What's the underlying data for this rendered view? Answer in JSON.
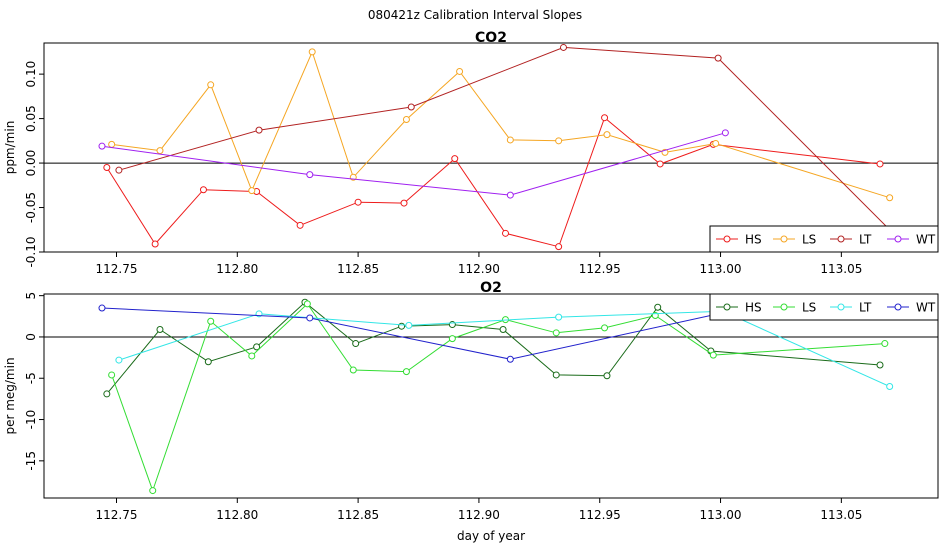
{
  "title": "080421z   Calibration Interval Slopes",
  "chart_data": [
    {
      "type": "line",
      "title": "CO2",
      "xlabel": "",
      "ylabel": "ppm/min",
      "xlim": [
        112.72,
        113.09
      ],
      "ylim": [
        -0.1,
        0.135
      ],
      "xticks": [
        "112.75",
        "112.80",
        "112.85",
        "112.90",
        "112.95",
        "113.00",
        "113.05"
      ],
      "xtick_values": [
        112.75,
        112.8,
        112.85,
        112.9,
        112.95,
        113.0,
        113.05
      ],
      "yticks": [
        "-0.10",
        "-0.05",
        "0.00",
        "0.05",
        "0.10"
      ],
      "ytick_values": [
        -0.1,
        -0.05,
        0.0,
        0.05,
        0.1
      ],
      "reference_line": 0,
      "legend_position": "bottom-right",
      "series": [
        {
          "name": "HS",
          "color": "#ee1c1c",
          "x": [
            112.746,
            112.766,
            112.786,
            112.808,
            112.826,
            112.85,
            112.869,
            112.89,
            112.911,
            112.933,
            112.952,
            112.975,
            112.997,
            113.066
          ],
          "y": [
            -0.005,
            -0.091,
            -0.03,
            -0.032,
            -0.07,
            -0.044,
            -0.045,
            0.005,
            -0.079,
            -0.094,
            0.051,
            -0.001,
            0.021,
            -0.001
          ]
        },
        {
          "name": "LS",
          "color": "#f5a623",
          "x": [
            112.748,
            112.768,
            112.789,
            112.806,
            112.831,
            112.848,
            112.87,
            112.892,
            112.913,
            112.933,
            112.953,
            112.977,
            112.998,
            113.07
          ],
          "y": [
            0.021,
            0.014,
            0.088,
            -0.031,
            0.125,
            -0.016,
            0.049,
            0.103,
            0.026,
            0.025,
            0.032,
            0.012,
            0.022,
            -0.039
          ]
        },
        {
          "name": "LT",
          "color": "#b22222",
          "x": [
            112.751,
            112.809,
            112.872,
            112.935,
            112.999,
            113.07
          ],
          "y": [
            -0.008,
            0.037,
            0.063,
            0.13,
            0.118,
            -0.075
          ]
        },
        {
          "name": "WT",
          "color": "#a020f0",
          "x": [
            112.744,
            112.83,
            112.913,
            113.002
          ],
          "y": [
            0.019,
            -0.013,
            -0.036,
            0.034
          ]
        }
      ]
    },
    {
      "type": "line",
      "title": "O2",
      "xlabel": "day of year",
      "ylabel": "per meg/min",
      "xlim": [
        112.72,
        113.09
      ],
      "ylim": [
        -19.5,
        5.2
      ],
      "xticks": [
        "112.75",
        "112.80",
        "112.85",
        "112.90",
        "112.95",
        "113.00",
        "113.05"
      ],
      "xtick_values": [
        112.75,
        112.8,
        112.85,
        112.9,
        112.95,
        113.0,
        113.05
      ],
      "yticks": [
        "-15",
        "-10",
        "-5",
        "0",
        "5"
      ],
      "ytick_values": [
        -15,
        -10,
        -5,
        0,
        5
      ],
      "reference_line": 0,
      "legend_position": "top-right",
      "series": [
        {
          "name": "HS",
          "color": "#1a6b1a",
          "x": [
            112.746,
            112.768,
            112.788,
            112.808,
            112.828,
            112.849,
            112.868,
            112.889,
            112.91,
            112.932,
            112.953,
            112.974,
            112.996,
            113.066
          ],
          "y": [
            -6.9,
            0.9,
            -3.0,
            -1.2,
            4.2,
            -0.8,
            1.3,
            1.5,
            0.9,
            -4.6,
            -4.7,
            3.6,
            -1.7,
            -3.4
          ]
        },
        {
          "name": "LS",
          "color": "#33dd33",
          "x": [
            112.748,
            112.765,
            112.789,
            112.806,
            112.829,
            112.848,
            112.87,
            112.889,
            112.911,
            112.932,
            112.952,
            112.973,
            112.997,
            113.068
          ],
          "y": [
            -4.6,
            -18.6,
            1.9,
            -2.3,
            4.0,
            -4.0,
            -4.2,
            -0.2,
            2.1,
            0.5,
            1.1,
            2.6,
            -2.2,
            -0.8
          ]
        },
        {
          "name": "LT",
          "color": "#33e6e6",
          "x": [
            112.751,
            112.809,
            112.871,
            112.933,
            113.001,
            113.07
          ],
          "y": [
            -2.8,
            2.8,
            1.4,
            2.4,
            3.1,
            -6.0
          ]
        },
        {
          "name": "WT",
          "color": "#2222cc",
          "x": [
            112.744,
            112.83,
            112.913,
            113.002
          ],
          "y": [
            3.5,
            2.3,
            -2.7,
            3.0
          ]
        }
      ]
    }
  ]
}
